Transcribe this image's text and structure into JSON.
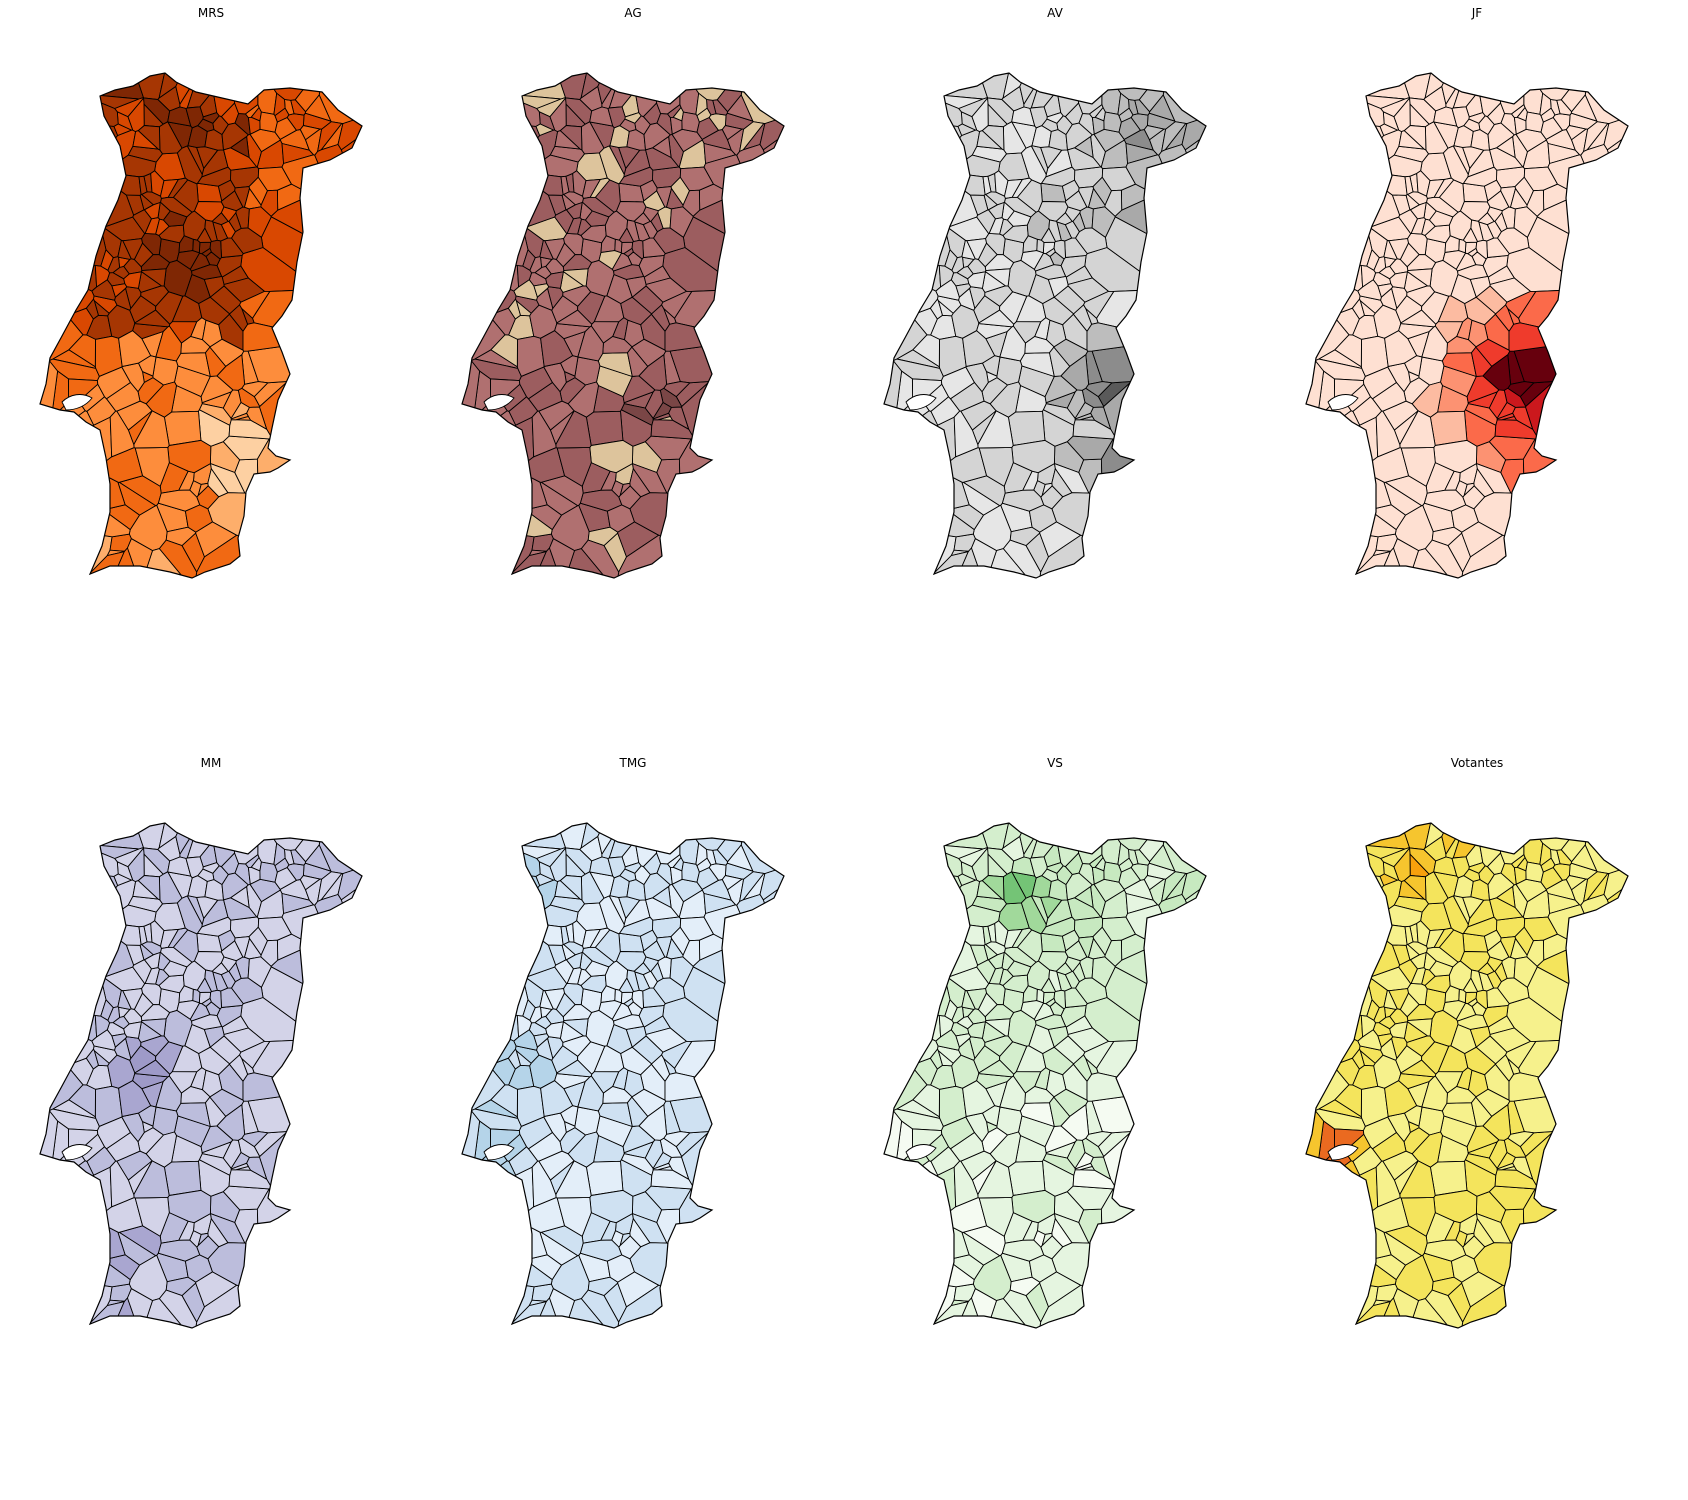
{
  "figure": {
    "panels": [
      {
        "title": "MRS",
        "colormap": "Oranges",
        "palette": [
          "#fff3e6",
          "#fdd0a2",
          "#fdae6b",
          "#fd8d3c",
          "#f16913",
          "#d94801",
          "#a63603",
          "#7f2704"
        ]
      },
      {
        "title": "AG",
        "colormap": "pink",
        "palette": [
          "#f3f0c8",
          "#ddc49c",
          "#d0a88e",
          "#c08a83",
          "#b07070",
          "#9c5d5f",
          "#7a4646",
          "#2a0a0a"
        ]
      },
      {
        "title": "AV",
        "colormap": "Greys",
        "palette": [
          "#f4f4f4",
          "#e6e6e6",
          "#d4d4d4",
          "#bdbdbd",
          "#a9a9a9",
          "#8c8c8c",
          "#5a5a5a",
          "#1e1e1e"
        ]
      },
      {
        "title": "JF",
        "colormap": "Reds",
        "palette": [
          "#fff1ec",
          "#fee0d2",
          "#fcbba1",
          "#fc9272",
          "#fb6a4a",
          "#ef3b2c",
          "#cb181d",
          "#67000d"
        ]
      },
      {
        "title": "MM",
        "colormap": "Purples",
        "palette": [
          "#f6f5fa",
          "#e7e6f2",
          "#d3d3e8",
          "#bcbddc",
          "#a9a6d0",
          "#9e9ac8",
          "#7b72b8",
          "#3f007d"
        ]
      },
      {
        "title": "TMG",
        "colormap": "Blues",
        "palette": [
          "#f2f7fd",
          "#e3eef9",
          "#cfe1f2",
          "#b5d4e9",
          "#9ecae1",
          "#6baed6",
          "#3182bd",
          "#08519c"
        ]
      },
      {
        "title": "VS",
        "colormap": "Greens",
        "palette": [
          "#f5fbf2",
          "#e5f5e0",
          "#d4eecd",
          "#c7e9c0",
          "#a1d99b",
          "#74c476",
          "#41ab5d",
          "#00441b"
        ]
      },
      {
        "title": "Votantes",
        "colormap": "inferno_r",
        "palette": [
          "#fcfca4",
          "#f6f18c",
          "#f4e45c",
          "#f6c52e",
          "#f8a00c",
          "#ea6a20",
          "#a52c60",
          "#000004"
        ]
      }
    ]
  }
}
